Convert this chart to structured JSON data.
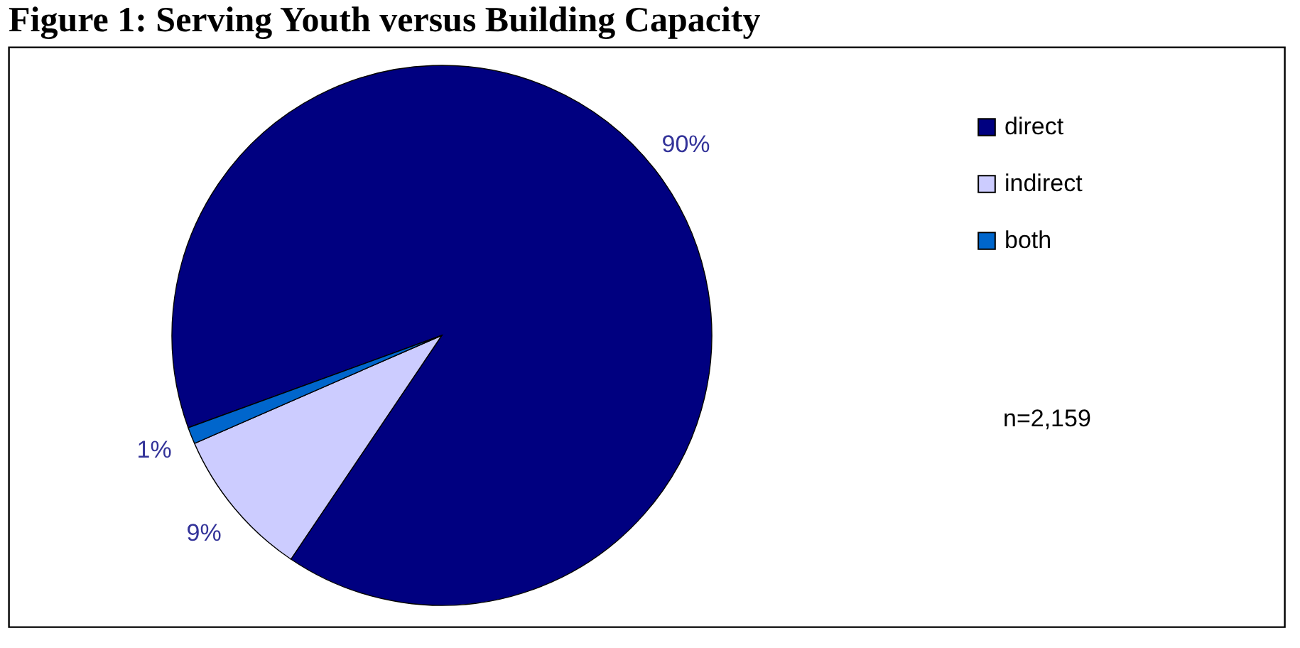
{
  "chart_data": {
    "type": "pie",
    "title": "Figure 1: Serving Youth versus Building Capacity",
    "categories": [
      "direct",
      "indirect",
      "both"
    ],
    "values": [
      90,
      9,
      1
    ],
    "colors": [
      "#000080",
      "#ccccff",
      "#0066cc"
    ],
    "value_labels": [
      "90%",
      "9%",
      "1%"
    ],
    "legend": "right",
    "annotations": [
      "n=2,159"
    ]
  }
}
